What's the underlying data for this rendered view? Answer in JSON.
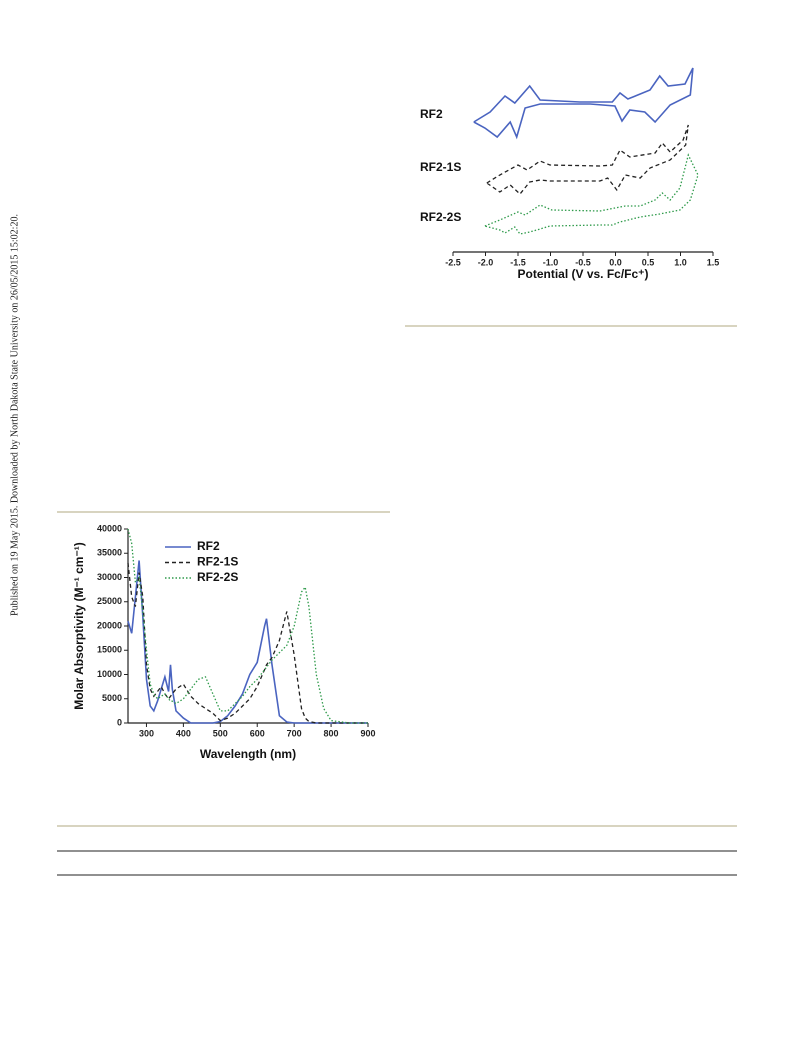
{
  "sidebar_note": "Published on 19 May 2015. Downloaded by North Dakota State University on 26/05/2015 15:02:20.",
  "chart_data": [
    {
      "type": "line",
      "xlabel": "Potential (V vs. Fc/Fc⁺)",
      "xlim": [
        -2.5,
        1.5
      ],
      "xticks": [
        -2.5,
        {
          "value": -2.0,
          "label": "-2.0"
        },
        -1.5,
        {
          "value": -1.0,
          "label": "-1.0"
        },
        -0.5,
        {
          "value": 0.0,
          "label": "0.0"
        },
        0.5,
        {
          "value": 1.0,
          "label": "1.0"
        },
        1.5
      ],
      "ylim": [
        0,
        185
      ],
      "series": [
        {
          "name": "RF2",
          "color": "#4a64c0",
          "style": "solid",
          "x": [
            -2.18,
            -1.93,
            -1.7,
            -1.55,
            -1.32,
            -1.16,
            -0.55,
            -0.05,
            0.07,
            0.19,
            0.53,
            0.68,
            0.81,
            1.07,
            1.19,
            1.15,
            0.84,
            0.61,
            0.45,
            0.22,
            0.1,
            -0.01,
            -0.39,
            -1.16,
            -1.39,
            -1.52,
            -1.62,
            -1.82,
            -2.01,
            -2.18
          ],
          "values": [
            123,
            133,
            149,
            142,
            159,
            145,
            143,
            143,
            152,
            146,
            155,
            169,
            159,
            161,
            177,
            150,
            140,
            123,
            133,
            135,
            124,
            139,
            141,
            141,
            137,
            108,
            123,
            108,
            117,
            123
          ]
        },
        {
          "name": "RF2-1S",
          "color": "#222222",
          "style": "dashed",
          "x": [
            -1.98,
            -1.78,
            -1.5,
            -1.36,
            -1.16,
            -1.01,
            -0.24,
            -0.05,
            0.07,
            0.22,
            0.61,
            0.72,
            0.84,
            1.04,
            1.12,
            1.08,
            0.84,
            0.53,
            0.38,
            0.15,
            0.02,
            -0.12,
            -0.24,
            -1.01,
            -1.16,
            -1.32,
            -1.47,
            -1.62,
            -1.78,
            -1.98
          ],
          "values": [
            62,
            70,
            80,
            75,
            84,
            80,
            79,
            80,
            95,
            88,
            92,
            102,
            93,
            105,
            120,
            100,
            85,
            77,
            67,
            70,
            55,
            67,
            64,
            64,
            65,
            63,
            51,
            60,
            53,
            62
          ]
        },
        {
          "name": "RF2-2S",
          "color": "#2e9a4a",
          "style": "dotted",
          "x": [
            -2.01,
            -1.78,
            -1.5,
            -1.39,
            -1.16,
            -0.98,
            -0.24,
            -0.01,
            0.15,
            0.38,
            0.61,
            0.72,
            0.84,
            0.99,
            1.12,
            1.27,
            1.15,
            0.99,
            0.68,
            0.38,
            0.07,
            -0.05,
            -0.24,
            -1.01,
            -1.16,
            -1.32,
            -1.47,
            -1.55,
            -1.7,
            -1.78,
            -2.01
          ],
          "values": [
            19,
            25,
            33,
            30,
            40,
            35,
            34,
            37,
            39,
            39,
            45,
            52,
            45,
            57,
            90,
            70,
            45,
            35,
            31,
            28,
            23,
            20,
            20,
            19,
            16,
            13,
            11,
            18,
            12,
            15,
            19
          ]
        }
      ]
    },
    {
      "type": "line",
      "xlabel": "Wavelength (nm)",
      "ylabel": "Molar Absorptivity (M⁻¹ cm⁻¹)",
      "xlim": [
        250,
        900
      ],
      "xticks": [
        300,
        400,
        500,
        600,
        700,
        800,
        900
      ],
      "ylim": [
        0,
        40000
      ],
      "yticks": [
        0,
        5000,
        10000,
        15000,
        20000,
        25000,
        30000,
        35000,
        40000
      ],
      "x": [
        250,
        260,
        270,
        280,
        290,
        300,
        310,
        320,
        330,
        340,
        350,
        360,
        365,
        370,
        380,
        400,
        420,
        440,
        460,
        480,
        500,
        520,
        540,
        560,
        580,
        600,
        620,
        625,
        640,
        660,
        680,
        700,
        720,
        730,
        740,
        760,
        780,
        800,
        850,
        900
      ],
      "series": [
        {
          "name": "RF2",
          "color": "#4a64c0",
          "style": "solid",
          "values": [
            21000,
            18500,
            26000,
            33500,
            22000,
            9000,
            3500,
            2500,
            4500,
            7000,
            9500,
            6500,
            12000,
            7000,
            2500,
            1000,
            0,
            0,
            0,
            0,
            300,
            1500,
            3500,
            6000,
            10000,
            12500,
            20000,
            21500,
            12000,
            1500,
            200,
            0,
            0,
            0,
            0,
            0,
            0,
            0,
            0,
            0
          ]
        },
        {
          "name": "RF2-1S",
          "color": "#222222",
          "style": "dashed",
          "values": [
            33000,
            26000,
            24000,
            31000,
            26000,
            12000,
            7000,
            5500,
            6500,
            7500,
            6000,
            5000,
            5500,
            6000,
            7000,
            8000,
            5500,
            4000,
            3000,
            2000,
            500,
            1000,
            2000,
            3500,
            5000,
            7500,
            11000,
            12000,
            13500,
            17000,
            23000,
            14000,
            3000,
            1000,
            300,
            0,
            0,
            0,
            0,
            0
          ]
        },
        {
          "name": "RF2-2S",
          "color": "#2e9a4a",
          "style": "dotted",
          "values": [
            40000,
            37000,
            29000,
            30000,
            23000,
            15000,
            8000,
            6000,
            5000,
            5500,
            6000,
            5000,
            4500,
            4500,
            4000,
            5000,
            7000,
            9000,
            9500,
            6000,
            2500,
            2500,
            4000,
            5500,
            7500,
            9000,
            11000,
            11500,
            13000,
            14500,
            16000,
            20000,
            27000,
            28000,
            24000,
            10000,
            3000,
            500,
            0,
            0
          ]
        }
      ]
    }
  ]
}
